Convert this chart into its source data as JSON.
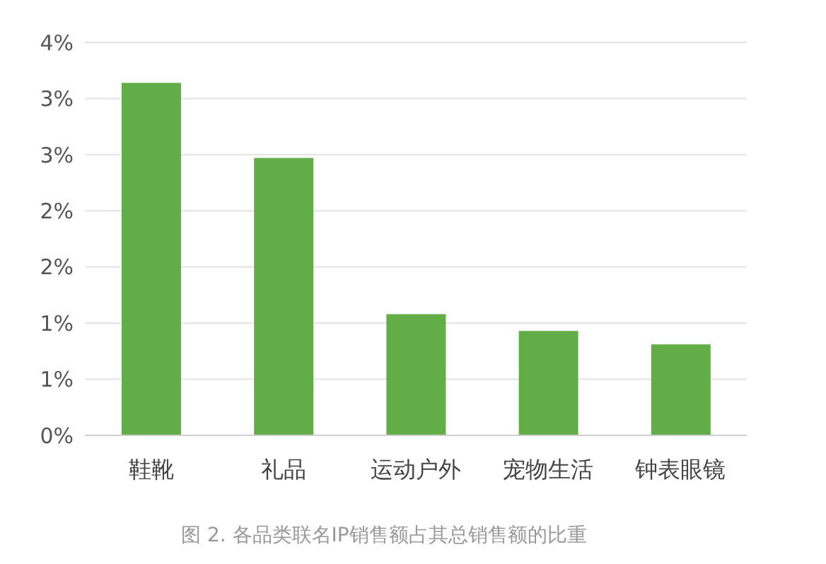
{
  "chart_data": {
    "type": "bar",
    "categories": [
      "鞋靴",
      "礼品",
      "运动户外",
      "宠物生活",
      "钟表眼镜"
    ],
    "values": [
      3.14,
      2.47,
      1.08,
      0.93,
      0.81
    ],
    "color": "#62ad48",
    "ylim": [
      0,
      3.5
    ],
    "yticks": [
      {
        "value": 0,
        "label": "0%"
      },
      {
        "value": 0.5,
        "label": "1%"
      },
      {
        "value": 1,
        "label": "1%"
      },
      {
        "value": 1.5,
        "label": "2%"
      },
      {
        "value": 2,
        "label": "2%"
      },
      {
        "value": 2.5,
        "label": "3%"
      },
      {
        "value": 3,
        "label": "3%"
      },
      {
        "value": 3.5,
        "label": "4%"
      }
    ],
    "grid": "y",
    "annotations": [
      "图 2. 各品类联名IP销售额占其总销售额的比重"
    ]
  }
}
